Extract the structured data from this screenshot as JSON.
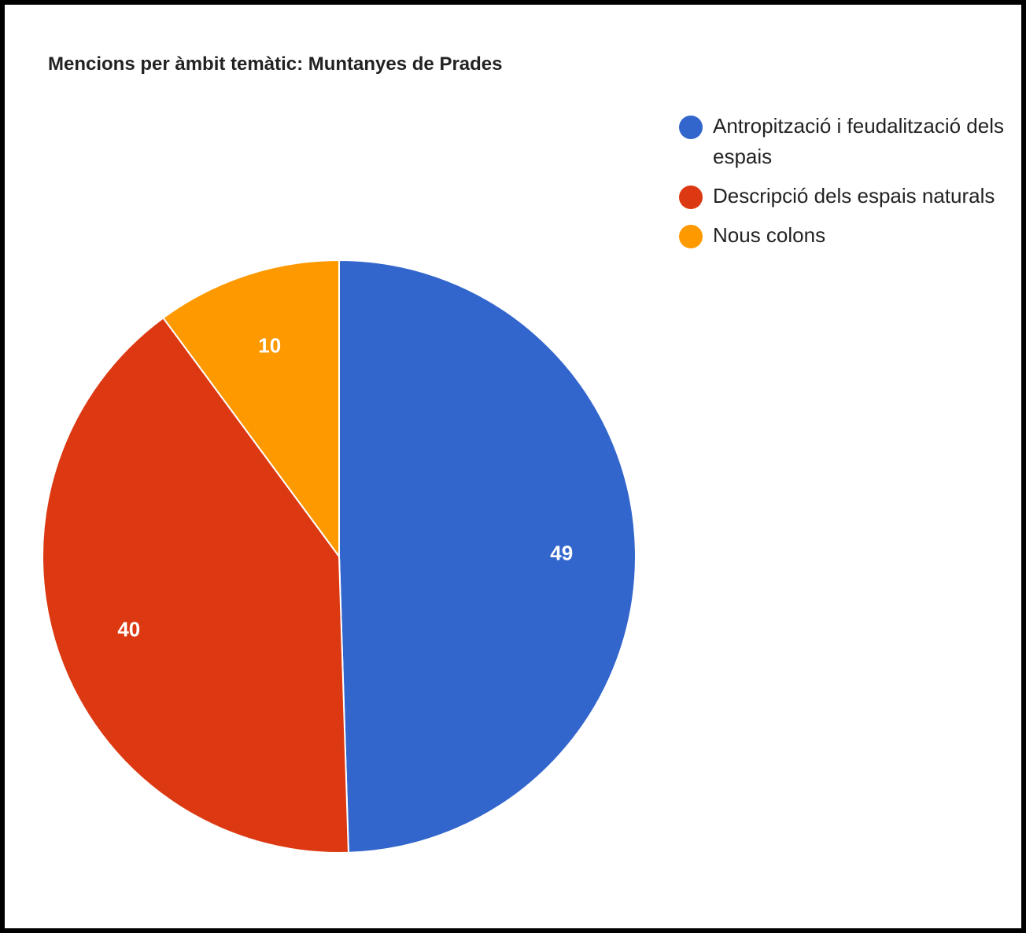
{
  "chart_data": {
    "type": "pie",
    "title": "Mencions per àmbit temàtic: Muntanyes de Prades",
    "legend_position": "right",
    "slices": [
      {
        "label": "Antropització i feudalització dels espais",
        "value": 49,
        "display": "49",
        "color": "#3366cc"
      },
      {
        "label": "Descripció dels espais naturals",
        "value": 40,
        "display": "40",
        "color": "#dc3912"
      },
      {
        "label": "Nous colons",
        "value": 10,
        "display": "10",
        "color": "#ff9900"
      }
    ]
  }
}
